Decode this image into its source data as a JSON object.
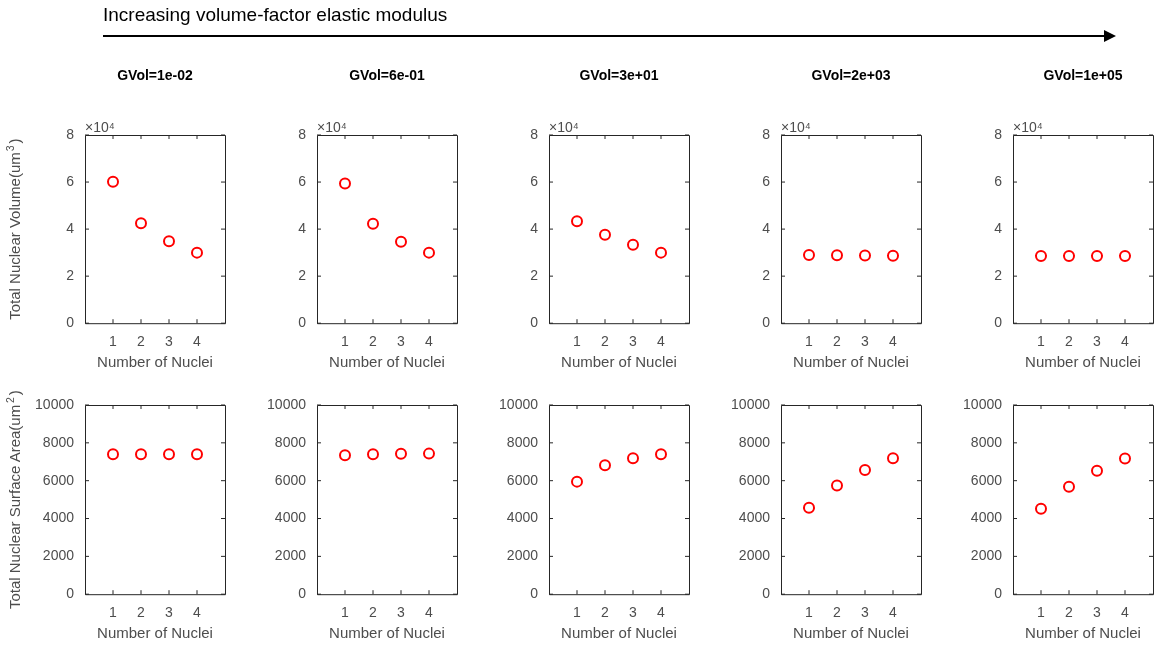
{
  "chart_data": [
    {
      "type": "other",
      "title": "Increasing volume-factor elastic modulus"
    },
    {
      "type": "scatter",
      "title": "GVol=1e-02",
      "ylabel": "Total Nuclear Volume(um$^{3}$)",
      "xlabel": "Number of Nuclei",
      "annotations": [
        "×10⁴"
      ],
      "x": [
        1,
        2,
        3,
        4
      ],
      "xlim": [
        0,
        5
      ],
      "xticks": [
        1,
        2,
        3,
        4
      ],
      "ylim": [
        0,
        8
      ],
      "yticks": [
        0,
        2,
        4,
        6,
        8
      ],
      "marker": "circle",
      "series": [
        {
          "color": "#ff0000",
          "values": [
            6.01,
            4.25,
            3.48,
            3.0
          ]
        }
      ]
    },
    {
      "type": "scatter",
      "title": "GVol=6e-01",
      "xlabel": "Number of Nuclei",
      "annotations": [
        "×10⁴"
      ],
      "x": [
        1,
        2,
        3,
        4
      ],
      "xlim": [
        0,
        5
      ],
      "xticks": [
        1,
        2,
        3,
        4
      ],
      "ylim": [
        0,
        8
      ],
      "yticks": [
        0,
        2,
        4,
        6,
        8
      ],
      "marker": "circle",
      "series": [
        {
          "color": "#ff0000",
          "values": [
            5.94,
            4.23,
            3.46,
            3.0
          ]
        }
      ]
    },
    {
      "type": "scatter",
      "title": "GVol=3e+01",
      "xlabel": "Number of Nuclei",
      "annotations": [
        "×10⁴"
      ],
      "x": [
        1,
        2,
        3,
        4
      ],
      "xlim": [
        0,
        5
      ],
      "xticks": [
        1,
        2,
        3,
        4
      ],
      "ylim": [
        0,
        8
      ],
      "yticks": [
        0,
        2,
        4,
        6,
        8
      ],
      "marker": "circle",
      "series": [
        {
          "color": "#ff0000",
          "values": [
            4.33,
            3.76,
            3.33,
            3.0
          ]
        }
      ]
    },
    {
      "type": "scatter",
      "title": "GVol=2e+03",
      "xlabel": "Number of Nuclei",
      "annotations": [
        "×10⁴"
      ],
      "x": [
        1,
        2,
        3,
        4
      ],
      "xlim": [
        0,
        5
      ],
      "xticks": [
        1,
        2,
        3,
        4
      ],
      "ylim": [
        0,
        8
      ],
      "yticks": [
        0,
        2,
        4,
        6,
        8
      ],
      "marker": "circle",
      "series": [
        {
          "color": "#ff0000",
          "values": [
            2.9,
            2.89,
            2.88,
            2.87
          ]
        }
      ]
    },
    {
      "type": "scatter",
      "title": "GVol=1e+05",
      "xlabel": "Number of Nuclei",
      "annotations": [
        "×10⁴"
      ],
      "x": [
        1,
        2,
        3,
        4
      ],
      "xlim": [
        0,
        5
      ],
      "xticks": [
        1,
        2,
        3,
        4
      ],
      "ylim": [
        0,
        8
      ],
      "yticks": [
        0,
        2,
        4,
        6,
        8
      ],
      "marker": "circle",
      "series": [
        {
          "color": "#ff0000",
          "values": [
            2.86,
            2.86,
            2.86,
            2.86
          ]
        }
      ]
    },
    {
      "type": "scatter",
      "ylabel": "Total Nuclear Surface Area(um$^{2}$)",
      "xlabel": "Number of Nuclei",
      "x": [
        1,
        2,
        3,
        4
      ],
      "xlim": [
        0,
        5
      ],
      "xticks": [
        1,
        2,
        3,
        4
      ],
      "ylim": [
        0,
        10000
      ],
      "yticks": [
        0,
        2000,
        4000,
        6000,
        8000,
        10000
      ],
      "marker": "circle",
      "series": [
        {
          "color": "#ff0000",
          "values": [
            7400,
            7400,
            7400,
            7400
          ]
        }
      ]
    },
    {
      "type": "scatter",
      "xlabel": "Number of Nuclei",
      "x": [
        1,
        2,
        3,
        4
      ],
      "xlim": [
        0,
        5
      ],
      "xticks": [
        1,
        2,
        3,
        4
      ],
      "ylim": [
        0,
        10000
      ],
      "yticks": [
        0,
        2000,
        4000,
        6000,
        8000,
        10000
      ],
      "marker": "circle",
      "series": [
        {
          "color": "#ff0000",
          "values": [
            7350,
            7400,
            7420,
            7430
          ]
        }
      ]
    },
    {
      "type": "scatter",
      "xlabel": "Number of Nuclei",
      "x": [
        1,
        2,
        3,
        4
      ],
      "xlim": [
        0,
        5
      ],
      "xticks": [
        1,
        2,
        3,
        4
      ],
      "ylim": [
        0,
        10000
      ],
      "yticks": [
        0,
        2000,
        4000,
        6000,
        8000,
        10000
      ],
      "marker": "circle",
      "series": [
        {
          "color": "#ff0000",
          "values": [
            5950,
            6810,
            7190,
            7400
          ]
        }
      ]
    },
    {
      "type": "scatter",
      "xlabel": "Number of Nuclei",
      "x": [
        1,
        2,
        3,
        4
      ],
      "xlim": [
        0,
        5
      ],
      "xticks": [
        1,
        2,
        3,
        4
      ],
      "ylim": [
        0,
        10000
      ],
      "yticks": [
        0,
        2000,
        4000,
        6000,
        8000,
        10000
      ],
      "marker": "circle",
      "series": [
        {
          "color": "#ff0000",
          "values": [
            4570,
            5750,
            6560,
            7190
          ]
        }
      ]
    },
    {
      "type": "scatter",
      "xlabel": "Number of Nuclei",
      "x": [
        1,
        2,
        3,
        4
      ],
      "xlim": [
        0,
        5
      ],
      "xticks": [
        1,
        2,
        3,
        4
      ],
      "ylim": [
        0,
        10000
      ],
      "yticks": [
        0,
        2000,
        4000,
        6000,
        8000,
        10000
      ],
      "marker": "circle",
      "series": [
        {
          "color": "#ff0000",
          "values": [
            4520,
            5680,
            6520,
            7170
          ]
        }
      ]
    }
  ]
}
